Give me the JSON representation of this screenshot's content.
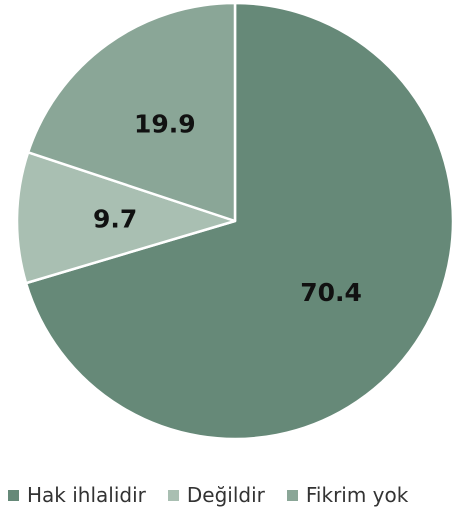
{
  "chart_data": {
    "type": "pie",
    "title": "",
    "start_angle_deg": 0,
    "direction": "clockwise",
    "slices": [
      {
        "label": "Hak ihlalidir",
        "value": 70.4,
        "display": "70.4",
        "color": "#668978"
      },
      {
        "label": "Değildir",
        "value": 9.7,
        "display": "9.7",
        "color": "#a9bfb2"
      },
      {
        "label": "Fikrim yok",
        "value": 19.9,
        "display": "19.9",
        "color": "#8aa697"
      }
    ],
    "legend": {
      "position": "bottom",
      "entries": [
        "Hak ihlalidir",
        "Değildir",
        "Fikrim yok"
      ]
    },
    "slice_border_color": "#ffffff"
  }
}
